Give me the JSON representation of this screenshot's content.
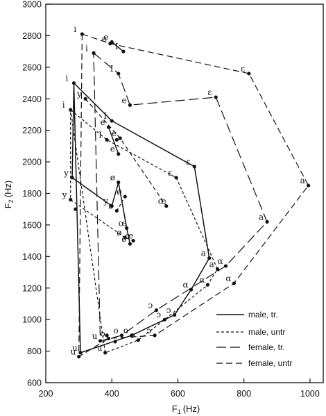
{
  "chart_data": {
    "type": "line",
    "title": "",
    "xlabel": "F",
    "xlabel_sub": "1",
    "xlabel_unit": "(Hz)",
    "ylabel": "F",
    "ylabel_sub": "2",
    "ylabel_unit": "(Hz)",
    "xlim": [
      200,
      1040
    ],
    "ylim": [
      600,
      3000
    ],
    "xticks": [
      200,
      400,
      600,
      800,
      1000
    ],
    "yticks": [
      600,
      800,
      1000,
      1200,
      1400,
      1600,
      1800,
      2000,
      2200,
      2400,
      2600,
      2800,
      3000
    ],
    "grid": false,
    "legend_position": "bottom-right",
    "series": [
      {
        "name": "male, tr.",
        "dash": "solid",
        "color": "#111111",
        "points": [
          {
            "x": 285,
            "y": 2500,
            "label": "i"
          },
          {
            "x": 400,
            "y": 2260,
            "label": "I"
          },
          {
            "x": 650,
            "y": 1970,
            "label": "ε"
          },
          {
            "x": 695,
            "y": 1390,
            "label": "a"
          },
          {
            "x": 640,
            "y": 1190,
            "label": "α"
          },
          {
            "x": 590,
            "y": 1030,
            "label": "ɔ"
          },
          {
            "x": 460,
            "y": 900,
            "label": "o"
          },
          {
            "x": 305,
            "y": 790,
            "label": "u"
          },
          {
            "x": 285,
            "y": 2500
          },
          {
            "x": 280,
            "y": 1900,
            "label": "y"
          },
          {
            "x": 400,
            "y": 1720,
            "label": "y"
          },
          {
            "x": 420,
            "y": 1870,
            "label": "ø"
          },
          {
            "x": 445,
            "y": 1580,
            "label": "œ"
          },
          {
            "x": 455,
            "y": 1480,
            "label": "ø"
          }
        ]
      },
      {
        "name": "male, untr",
        "dash": "4 3",
        "color": "#111111",
        "points": [
          {
            "x": 275,
            "y": 2330,
            "label": "i"
          },
          {
            "x": 385,
            "y": 2140,
            "label": "I"
          },
          {
            "x": 595,
            "y": 1900,
            "label": "ε"
          },
          {
            "x": 720,
            "y": 1320,
            "label": "a"
          },
          {
            "x": 690,
            "y": 1220,
            "label": "α"
          },
          {
            "x": 560,
            "y": 1000,
            "label": "ɔ"
          },
          {
            "x": 480,
            "y": 870,
            "label": "o"
          },
          {
            "x": 380,
            "y": 790,
            "label": "u"
          },
          {
            "x": 275,
            "y": 2330
          },
          {
            "x": 275,
            "y": 1760,
            "label": "y"
          },
          {
            "x": 440,
            "y": 1520,
            "label": "ø"
          },
          {
            "x": 465,
            "y": 1500,
            "label": "œ"
          }
        ]
      },
      {
        "name": "female, tr.",
        "dash": "14 6",
        "color": "#111111",
        "points": [
          {
            "x": 345,
            "y": 2690,
            "label": "i"
          },
          {
            "x": 420,
            "y": 2560,
            "label": "I"
          },
          {
            "x": 455,
            "y": 2360,
            "label": "e"
          },
          {
            "x": 715,
            "y": 2410,
            "label": "ε"
          },
          {
            "x": 870,
            "y": 1620,
            "label": "a"
          },
          {
            "x": 745,
            "y": 1340,
            "label": "α"
          },
          {
            "x": 535,
            "y": 1060,
            "label": "ɔ"
          },
          {
            "x": 430,
            "y": 900,
            "label": "o"
          },
          {
            "x": 365,
            "y": 865,
            "label": "u"
          },
          {
            "x": 345,
            "y": 2690
          }
        ]
      },
      {
        "name": "female, untr",
        "dash": "9 5",
        "color": "#111111",
        "points": [
          {
            "x": 310,
            "y": 2810,
            "label": "i"
          },
          {
            "x": 395,
            "y": 2750,
            "label": "e"
          },
          {
            "x": 815,
            "y": 2560,
            "label": "ε"
          },
          {
            "x": 995,
            "y": 1850,
            "label": "a"
          },
          {
            "x": 770,
            "y": 1230,
            "label": "α"
          },
          {
            "x": 530,
            "y": 900,
            "label": "ɔ"
          },
          {
            "x": 390,
            "y": 880,
            "label": "o"
          },
          {
            "x": 300,
            "y": 765,
            "label": "u"
          },
          {
            "x": 310,
            "y": 2810
          }
        ]
      },
      {
        "name": "",
        "dash": "6 4",
        "color": "#111111",
        "points": [
          {
            "x": 320,
            "y": 2400,
            "label": "y"
          },
          {
            "x": 425,
            "y": 2150,
            "label": "e"
          },
          {
            "x": 565,
            "y": 1720,
            "label": "œ"
          }
        ]
      },
      {
        "name": "",
        "dash": "solid",
        "color": "#111111",
        "points": [
          {
            "x": 390,
            "y": 2220,
            "label": "e"
          },
          {
            "x": 420,
            "y": 2050,
            "label": "e"
          }
        ]
      },
      {
        "name": "",
        "dash": "solid",
        "color": "#111111",
        "points": [
          {
            "x": 400,
            "y": 2760,
            "label": "e"
          },
          {
            "x": 435,
            "y": 2700,
            "label": "I"
          }
        ]
      },
      {
        "name": "",
        "dash": "4 3",
        "color": "#111111",
        "points": [
          {
            "x": 415,
            "y": 1690,
            "label": "ø"
          },
          {
            "x": 440,
            "y": 1780,
            "label": "ø"
          }
        ]
      }
    ],
    "extra_points": [
      {
        "x": 290,
        "y": 1700,
        "label": ""
      },
      {
        "x": 415,
        "y": 2140,
        "label": ""
      },
      {
        "x": 385,
        "y": 900,
        "label": ""
      },
      {
        "x": 410,
        "y": 860,
        "label": ""
      }
    ]
  }
}
